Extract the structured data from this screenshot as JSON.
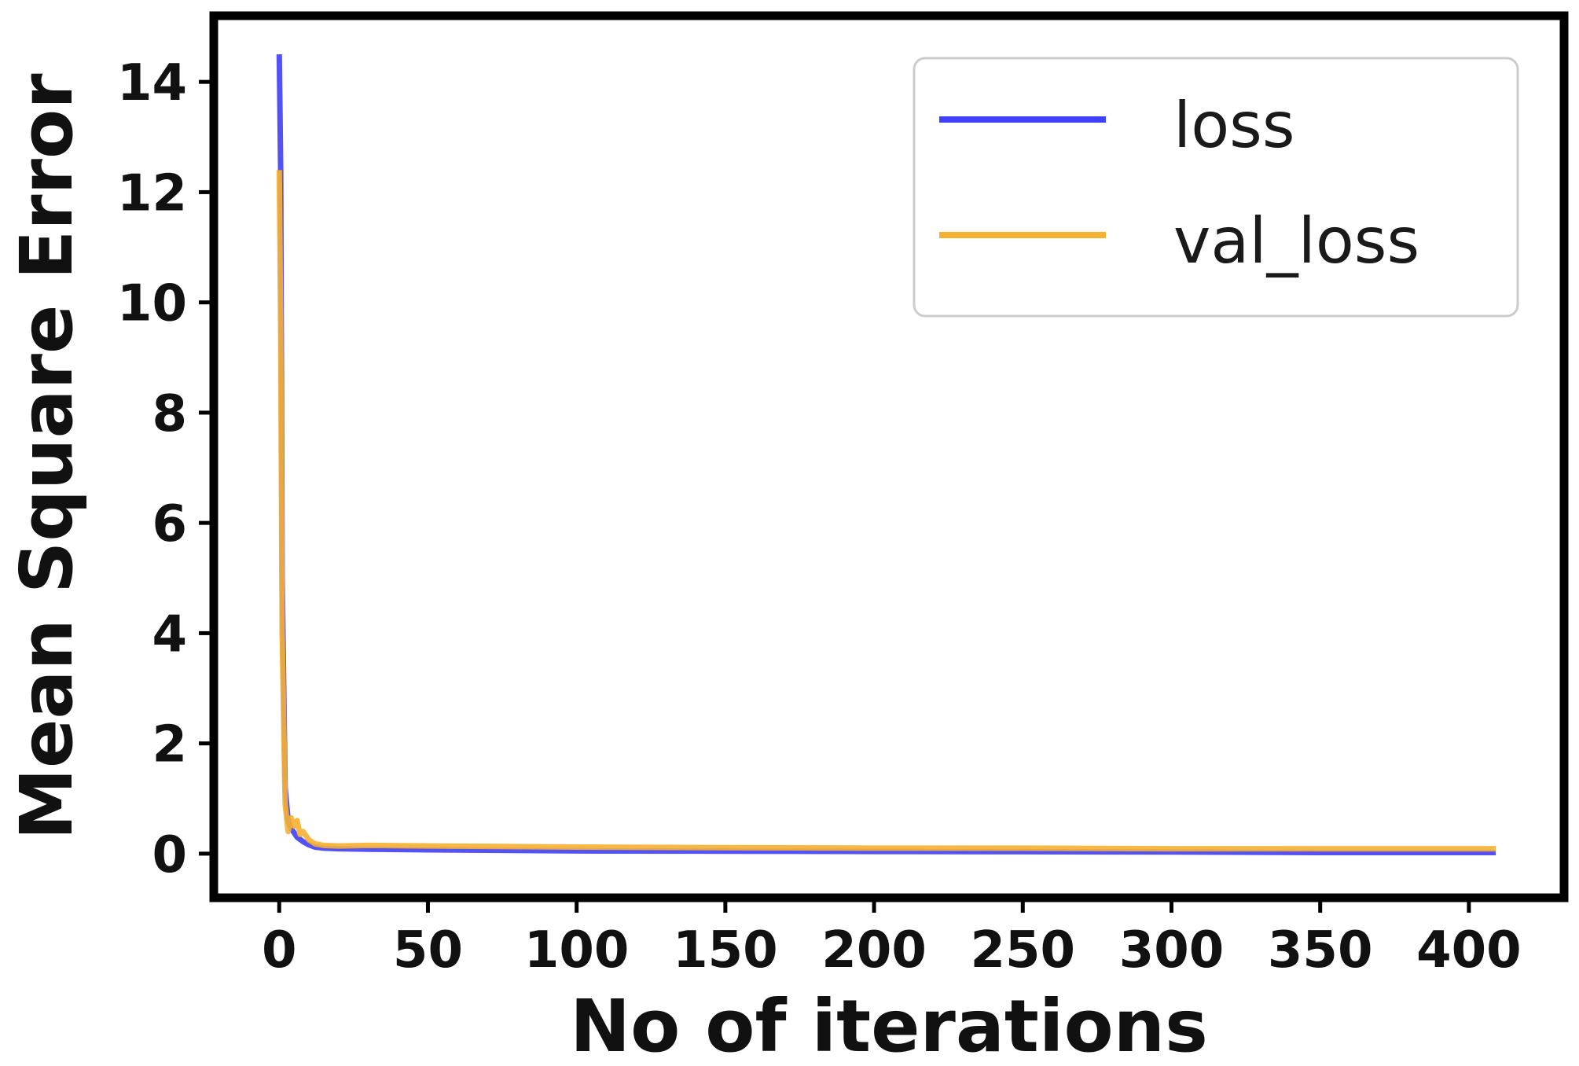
{
  "chart_data": {
    "type": "line",
    "xlabel": "No of iterations",
    "ylabel": "Mean Square Error",
    "xlim": [
      -22,
      432
    ],
    "ylim": [
      -0.8,
      15.2
    ],
    "xticks": [
      0,
      50,
      100,
      150,
      200,
      250,
      300,
      350,
      400
    ],
    "yticks": [
      0,
      2,
      4,
      6,
      8,
      10,
      12,
      14
    ],
    "grid": false,
    "legend_position": "top-right",
    "series": [
      {
        "name": "loss",
        "color": "#3f3ff5",
        "x": [
          0,
          0.5,
          1,
          2,
          3,
          4,
          5,
          6,
          8,
          10,
          12,
          15,
          20,
          30,
          50,
          100,
          150,
          200,
          250,
          300,
          350,
          409
        ],
        "y": [
          14.5,
          12.4,
          5.0,
          1.2,
          0.6,
          0.45,
          0.38,
          0.3,
          0.22,
          0.16,
          0.12,
          0.1,
          0.09,
          0.08,
          0.07,
          0.05,
          0.045,
          0.04,
          0.035,
          0.03,
          0.02,
          0.02
        ]
      },
      {
        "name": "val_loss",
        "color": "#f7b032",
        "x": [
          0,
          0.5,
          1,
          2,
          3,
          4,
          5,
          6,
          7,
          8,
          10,
          12,
          15,
          20,
          30,
          50,
          100,
          150,
          200,
          250,
          300,
          350,
          409
        ],
        "y": [
          12.4,
          9.5,
          4.0,
          0.9,
          0.4,
          0.65,
          0.5,
          0.6,
          0.35,
          0.4,
          0.25,
          0.18,
          0.15,
          0.14,
          0.15,
          0.14,
          0.12,
          0.11,
          0.1,
          0.1,
          0.09,
          0.09,
          0.09
        ]
      }
    ]
  }
}
